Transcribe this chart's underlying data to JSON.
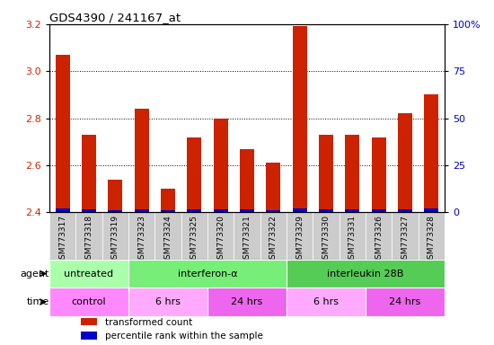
{
  "title": "GDS4390 / 241167_at",
  "samples": [
    "GSM773317",
    "GSM773318",
    "GSM773319",
    "GSM773323",
    "GSM773324",
    "GSM773325",
    "GSM773320",
    "GSM773321",
    "GSM773322",
    "GSM773329",
    "GSM773330",
    "GSM773331",
    "GSM773326",
    "GSM773327",
    "GSM773328"
  ],
  "red_values": [
    3.07,
    2.73,
    2.54,
    2.84,
    2.5,
    2.72,
    2.8,
    2.67,
    2.61,
    3.19,
    2.73,
    2.73,
    2.72,
    2.82,
    2.9
  ],
  "blue_values": [
    0.016,
    0.013,
    0.01,
    0.014,
    0.008,
    0.013,
    0.013,
    0.012,
    0.009,
    0.017,
    0.015,
    0.012,
    0.013,
    0.014,
    0.016
  ],
  "ylim_left": [
    2.4,
    3.2
  ],
  "ylim_right": [
    0,
    100
  ],
  "yticks_left": [
    2.4,
    2.6,
    2.8,
    3.0,
    3.2
  ],
  "yticks_right": [
    0,
    25,
    50,
    75,
    100
  ],
  "ytick_labels_right": [
    "0",
    "25",
    "50",
    "75",
    "100%"
  ],
  "bar_color_red": "#cc2200",
  "bar_color_blue": "#0000cc",
  "bar_width": 0.55,
  "ybase": 2.4,
  "agent_groups": [
    {
      "label": "untreated",
      "start": 0,
      "end": 3,
      "color": "#aaffaa"
    },
    {
      "label": "interferon-α",
      "start": 3,
      "end": 9,
      "color": "#77ee77"
    },
    {
      "label": "interleukin 28B",
      "start": 9,
      "end": 15,
      "color": "#55cc55"
    }
  ],
  "time_groups": [
    {
      "label": "control",
      "start": 0,
      "end": 3,
      "color": "#ff88ff"
    },
    {
      "label": "6 hrs",
      "start": 3,
      "end": 6,
      "color": "#ffaaff"
    },
    {
      "label": "24 hrs",
      "start": 6,
      "end": 9,
      "color": "#ee66ee"
    },
    {
      "label": "6 hrs",
      "start": 9,
      "end": 12,
      "color": "#ffaaff"
    },
    {
      "label": "24 hrs",
      "start": 12,
      "end": 15,
      "color": "#ee66ee"
    }
  ],
  "legend_items": [
    {
      "color": "#cc2200",
      "label": "transformed count"
    },
    {
      "color": "#0000cc",
      "label": "percentile rank within the sample"
    }
  ],
  "agent_label": "agent",
  "time_label": "time",
  "tick_label_color_left": "#cc2200",
  "tick_label_color_right": "#0000cc",
  "xtick_bg_color": "#cccccc",
  "chart_bg_color": "#ffffff"
}
